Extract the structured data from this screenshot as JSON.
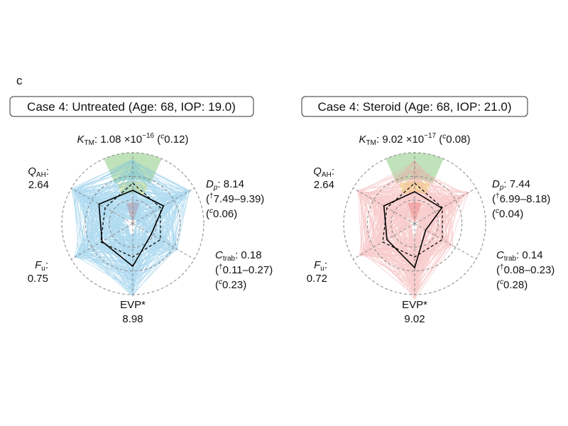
{
  "figure": {
    "panel_letter": "c"
  },
  "chart_data": [
    {
      "type": "radar",
      "title": "Case 4: Untreated (Age: 68, IOP: 19.0)",
      "axes": [
        {
          "key": "ktm",
          "sym": "K",
          "sub": "TM",
          "value_text": "1.08 ×10",
          "exp": "−16",
          "ci": "0.12"
        },
        {
          "key": "dp",
          "sym": "D",
          "sub": "p",
          "sub_italic": true,
          "value_text": "8.14",
          "range": "7.49–9.39",
          "ci": "0.06"
        },
        {
          "key": "ctrab",
          "sym": "C",
          "sub": "trab",
          "value_text": "0.18",
          "range": "0.11–0.27",
          "ci": "0.23"
        },
        {
          "key": "evp",
          "name": "EVP*",
          "value_text": "8.98"
        },
        {
          "key": "fu",
          "sym": "F",
          "sub": "u",
          "value_text": "0.75"
        },
        {
          "key": "qah",
          "sym": "Q",
          "sub": "AH",
          "value_text": "2.64"
        }
      ],
      "case_norm": [
        0.47,
        0.5,
        0.3,
        0.6,
        0.5,
        0.55
      ],
      "reference_norm": [
        0.57,
        0.45,
        0.45,
        0.47,
        0.52,
        0.45
      ],
      "ensemble_color": "#6fbde3"
    },
    {
      "type": "radar",
      "title": "Case 4: Steroid (Age: 68, IOP: 21.0)",
      "axes": [
        {
          "key": "ktm",
          "sym": "K",
          "sub": "TM",
          "value_text": "9.02 ×10",
          "exp": "−17",
          "ci": "0.08"
        },
        {
          "key": "dp",
          "sym": "D",
          "sub": "p",
          "sub_italic": true,
          "value_text": "7.44",
          "range": "6.99–8.18",
          "ci": "0.04"
        },
        {
          "key": "ctrab",
          "sym": "C",
          "sub": "trab",
          "value_text": "0.14",
          "range": "0.08–0.23",
          "ci": "0.28"
        },
        {
          "key": "evp",
          "name": "EVP*",
          "value_text": "9.02"
        },
        {
          "key": "fu",
          "sym": "F",
          "sub": "u",
          "value_text": "0.72"
        },
        {
          "key": "qah",
          "sym": "Q",
          "sub": "AH",
          "value_text": "2.64"
        }
      ],
      "case_norm": [
        0.45,
        0.44,
        0.18,
        0.62,
        0.45,
        0.5
      ],
      "reference_norm": [
        0.57,
        0.45,
        0.45,
        0.47,
        0.52,
        0.45
      ],
      "ensemble_color": "#f3a3a3"
    }
  ],
  "colors": {
    "green_band": "#b9dfb2",
    "yellow_band": "#f4f29a",
    "red_band": "#f2a9a9",
    "grid": "#888888",
    "case_line": "#000000"
  }
}
